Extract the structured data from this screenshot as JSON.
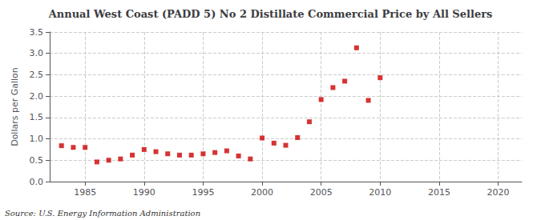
{
  "chart_data": {
    "type": "scatter",
    "title": "Annual West Coast (PADD 5) No 2 Distillate Commercial Price by All Sellers",
    "ylabel": "Dollars per Gallon",
    "annotations": [
      "Source: U.S. Energy Information Administration"
    ],
    "x": [
      1983,
      1984,
      1985,
      1986,
      1987,
      1988,
      1989,
      1990,
      1991,
      1992,
      1993,
      1994,
      1995,
      1996,
      1997,
      1998,
      1999,
      2000,
      2001,
      2002,
      2003,
      2004,
      2005,
      2006,
      2007,
      2008,
      2009,
      2010
    ],
    "values": [
      0.84,
      0.8,
      0.8,
      0.46,
      0.5,
      0.53,
      0.62,
      0.75,
      0.7,
      0.65,
      0.62,
      0.62,
      0.65,
      0.68,
      0.72,
      0.6,
      0.53,
      1.02,
      0.9,
      0.85,
      1.03,
      1.4,
      1.92,
      2.2,
      2.35,
      3.13,
      1.9,
      2.43
    ],
    "color": "#cc0000",
    "marker": "square",
    "xlim": [
      1982,
      2022
    ],
    "xticks": [
      1985,
      1990,
      1995,
      2000,
      2005,
      2010,
      2015,
      2020
    ],
    "ylim": [
      0.0,
      3.5
    ],
    "yticks": [
      {
        "value": 0,
        "label": "0.0"
      },
      0.5,
      {
        "value": 1,
        "label": "1.0"
      },
      1.5,
      {
        "value": 2,
        "label": "2.0"
      },
      2.5,
      {
        "value": 3,
        "label": "3.0"
      },
      3.5
    ],
    "grid": true
  }
}
